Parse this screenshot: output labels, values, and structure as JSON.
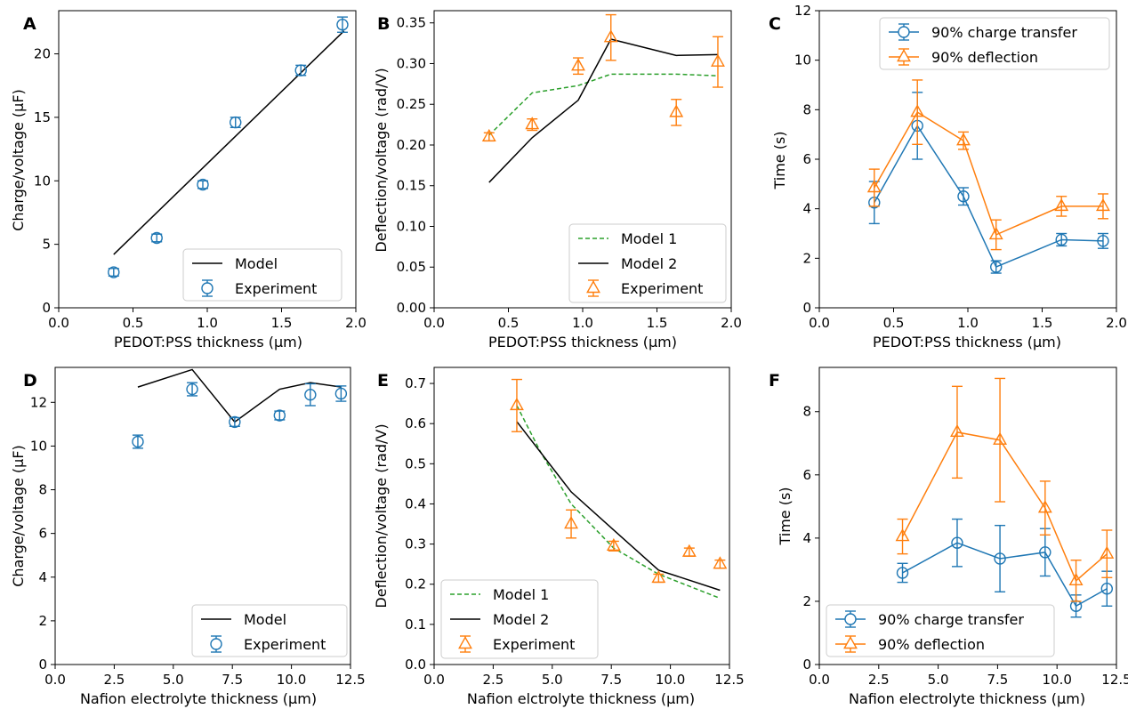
{
  "colors": {
    "charge": "#1f77b4",
    "deflection": "#ff7f0e",
    "model1": "#2ca02c",
    "model2": "#000000"
  },
  "chart_data": [
    {
      "letter": "A",
      "type": "scatter",
      "xlabel": "PEDOT:PSS thickness (µm)",
      "ylabel": "Charge/voltage (µF)",
      "xlim": [
        0.0,
        2.0
      ],
      "ylim": [
        0,
        23.4
      ],
      "xticks": [
        0.0,
        0.5,
        1.0,
        1.5,
        2.0
      ],
      "xtick_labels": [
        "0.0",
        "0.5",
        "1.0",
        "1.5",
        "2.0"
      ],
      "yticks": [
        0,
        5,
        10,
        15,
        20
      ],
      "ytick_labels": [
        "0",
        "5",
        "10",
        "15",
        "20"
      ],
      "grid": false,
      "legend_position": "bottom-right",
      "series": [
        {
          "name": "Model",
          "kind": "line",
          "color_key": "model2",
          "dash": "solid",
          "x": [
            0.37,
            1.92
          ],
          "y": [
            4.2,
            21.8
          ]
        },
        {
          "name": "Experiment",
          "kind": "points",
          "marker": "circle",
          "color_key": "charge",
          "x": [
            0.37,
            0.66,
            0.97,
            1.19,
            1.63,
            1.91
          ],
          "y": [
            2.8,
            5.5,
            9.7,
            14.6,
            18.7,
            22.3
          ],
          "err": [
            0.3,
            0.3,
            0.3,
            0.4,
            0.4,
            0.6
          ]
        }
      ]
    },
    {
      "letter": "B",
      "type": "scatter",
      "xlabel": "PEDOT:PSS thickness (µm)",
      "ylabel": "Deflection/voltage (rad/V)",
      "xlim": [
        0.0,
        2.0
      ],
      "ylim": [
        0,
        0.365
      ],
      "xticks": [
        0.0,
        0.5,
        1.0,
        1.5,
        2.0
      ],
      "xtick_labels": [
        "0.0",
        "0.5",
        "1.0",
        "1.5",
        "2.0"
      ],
      "yticks": [
        0,
        0.05,
        0.1,
        0.15,
        0.2,
        0.25,
        0.3,
        0.35
      ],
      "ytick_labels": [
        "0.00",
        "0.05",
        "0.10",
        "0.15",
        "0.20",
        "0.25",
        "0.30",
        "0.35"
      ],
      "grid": false,
      "legend_position": "bottom-right",
      "series": [
        {
          "name": "Model 1",
          "kind": "line",
          "color_key": "model1",
          "dash": "dashed",
          "x": [
            0.37,
            0.66,
            0.97,
            1.19,
            1.63,
            1.91
          ],
          "y": [
            0.212,
            0.264,
            0.273,
            0.287,
            0.287,
            0.285
          ]
        },
        {
          "name": "Model 2",
          "kind": "line",
          "color_key": "model2",
          "dash": "solid",
          "x": [
            0.37,
            0.66,
            0.97,
            1.19,
            1.63,
            1.91
          ],
          "y": [
            0.154,
            0.209,
            0.255,
            0.33,
            0.31,
            0.311
          ]
        },
        {
          "name": "Experiment",
          "kind": "points",
          "marker": "triangle",
          "color_key": "deflection",
          "x": [
            0.37,
            0.66,
            0.97,
            1.19,
            1.63,
            1.91
          ],
          "y": [
            0.21,
            0.225,
            0.297,
            0.332,
            0.24,
            0.302
          ],
          "err": [
            0.005,
            0.007,
            0.01,
            0.028,
            0.016,
            0.031
          ]
        }
      ]
    },
    {
      "letter": "C",
      "type": "line",
      "xlabel": "PEDOT:PSS thickness (µm)",
      "ylabel": "Time (s)",
      "xlim": [
        0.0,
        2.0
      ],
      "ylim": [
        0,
        12
      ],
      "xticks": [
        0.0,
        0.5,
        1.0,
        1.5,
        2.0
      ],
      "xtick_labels": [
        "0.0",
        "0.5",
        "1.0",
        "1.5",
        "2.0"
      ],
      "yticks": [
        0,
        2,
        4,
        6,
        8,
        10,
        12
      ],
      "ytick_labels": [
        "0",
        "2",
        "4",
        "6",
        "8",
        "10",
        "12"
      ],
      "grid": false,
      "legend_position": "top-right",
      "series": [
        {
          "name": "90% charge transfer",
          "kind": "line-points",
          "marker": "circle",
          "color_key": "charge",
          "x": [
            0.37,
            0.66,
            0.97,
            1.19,
            1.63,
            1.91
          ],
          "y": [
            4.25,
            7.35,
            4.5,
            1.65,
            2.75,
            2.7
          ],
          "err": [
            0.85,
            1.35,
            0.35,
            0.25,
            0.25,
            0.3
          ]
        },
        {
          "name": "90% deflection",
          "kind": "line-points",
          "marker": "triangle",
          "color_key": "deflection",
          "x": [
            0.37,
            0.66,
            0.97,
            1.19,
            1.63,
            1.91
          ],
          "y": [
            4.85,
            7.9,
            6.75,
            2.95,
            4.1,
            4.1
          ],
          "err": [
            0.75,
            1.3,
            0.35,
            0.6,
            0.4,
            0.5
          ]
        }
      ]
    },
    {
      "letter": "D",
      "type": "scatter",
      "xlabel": "Nafion electrolyte thickness (µm)",
      "ylabel": "Charge/voltage (µF)",
      "xlim": [
        0.0,
        12.5
      ],
      "ylim": [
        0,
        13.6
      ],
      "xticks": [
        0.0,
        2.5,
        5.0,
        7.5,
        10.0,
        12.5
      ],
      "xtick_labels": [
        "0.0",
        "2.5",
        "5.0",
        "7.5",
        "10.0",
        "12.5"
      ],
      "yticks": [
        0,
        2,
        4,
        6,
        8,
        10,
        12
      ],
      "ytick_labels": [
        "0",
        "2",
        "4",
        "6",
        "8",
        "10",
        "12"
      ],
      "grid": false,
      "legend_position": "bottom-right",
      "series": [
        {
          "name": "Model",
          "kind": "line",
          "color_key": "model2",
          "dash": "solid",
          "x": [
            3.5,
            5.8,
            7.6,
            9.5,
            10.8,
            12.1
          ],
          "y": [
            12.7,
            13.5,
            11.1,
            12.6,
            12.9,
            12.7
          ]
        },
        {
          "name": "Experiment",
          "kind": "points",
          "marker": "circle",
          "color_key": "charge",
          "x": [
            3.5,
            5.8,
            7.6,
            9.5,
            10.8,
            12.1
          ],
          "y": [
            10.2,
            12.6,
            11.1,
            11.4,
            12.35,
            12.4
          ],
          "err": [
            0.3,
            0.3,
            0.2,
            0.2,
            0.5,
            0.35
          ]
        }
      ]
    },
    {
      "letter": "E",
      "type": "scatter",
      "xlabel": "Nafion elctrolyte thickness (µm)",
      "ylabel": "Deflection/voltage (rad/V)",
      "xlim": [
        0.0,
        12.5
      ],
      "ylim": [
        0,
        0.74
      ],
      "xticks": [
        0.0,
        2.5,
        5.0,
        7.5,
        10.0,
        12.5
      ],
      "xtick_labels": [
        "0.0",
        "2.5",
        "5.0",
        "7.5",
        "10.0",
        "12.5"
      ],
      "yticks": [
        0,
        0.1,
        0.2,
        0.3,
        0.4,
        0.5,
        0.6,
        0.7
      ],
      "ytick_labels": [
        "0.0",
        "0.1",
        "0.2",
        "0.3",
        "0.4",
        "0.5",
        "0.6",
        "0.7"
      ],
      "grid": false,
      "legend_position": "bottom-left",
      "series": [
        {
          "name": "Model 1",
          "kind": "line",
          "color_key": "model1",
          "dash": "dashed",
          "x": [
            3.5,
            4.5,
            5.8,
            7.6,
            9.5,
            10.8,
            12.1
          ],
          "y": [
            0.645,
            0.53,
            0.4,
            0.29,
            0.225,
            0.195,
            0.165
          ]
        },
        {
          "name": "Model 2",
          "kind": "line",
          "color_key": "model2",
          "dash": "solid",
          "x": [
            3.5,
            5.8,
            7.6,
            9.5,
            10.8,
            12.1
          ],
          "y": [
            0.605,
            0.43,
            0.335,
            0.235,
            0.21,
            0.185
          ]
        },
        {
          "name": "Experiment",
          "kind": "points",
          "marker": "triangle",
          "color_key": "deflection",
          "x": [
            3.5,
            5.8,
            7.6,
            9.5,
            10.8,
            12.1
          ],
          "y": [
            0.645,
            0.35,
            0.295,
            0.215,
            0.28,
            0.25
          ],
          "err": [
            0.065,
            0.035,
            0.012,
            0.01,
            0.01,
            0.01
          ]
        }
      ]
    },
    {
      "letter": "F",
      "type": "line",
      "xlabel": "Nafion electrolyte thickness (µm)",
      "ylabel": "Time (s)",
      "xlim": [
        0.0,
        12.5
      ],
      "ylim": [
        0,
        9.4
      ],
      "xticks": [
        0.0,
        2.5,
        5.0,
        7.5,
        10.0,
        12.5
      ],
      "xtick_labels": [
        "0.0",
        "2.5",
        "5.0",
        "7.5",
        "10.0",
        "12.5"
      ],
      "yticks": [
        0,
        2,
        4,
        6,
        8
      ],
      "ytick_labels": [
        "0",
        "2",
        "4",
        "6",
        "8"
      ],
      "grid": false,
      "legend_position": "bottom-left",
      "series": [
        {
          "name": "90% charge transfer",
          "kind": "line-points",
          "marker": "circle",
          "color_key": "charge",
          "x": [
            3.5,
            5.8,
            7.6,
            9.5,
            10.8,
            12.1
          ],
          "y": [
            2.9,
            3.85,
            3.35,
            3.55,
            1.85,
            2.4
          ],
          "err": [
            0.3,
            0.75,
            1.05,
            0.75,
            0.35,
            0.55
          ]
        },
        {
          "name": "90% deflection",
          "kind": "line-points",
          "marker": "triangle",
          "color_key": "deflection",
          "x": [
            3.5,
            5.8,
            7.6,
            9.5,
            10.8,
            12.1
          ],
          "y": [
            4.05,
            7.35,
            7.1,
            4.95,
            2.65,
            3.5
          ],
          "err": [
            0.55,
            1.45,
            1.95,
            0.85,
            0.65,
            0.75
          ]
        }
      ]
    }
  ]
}
